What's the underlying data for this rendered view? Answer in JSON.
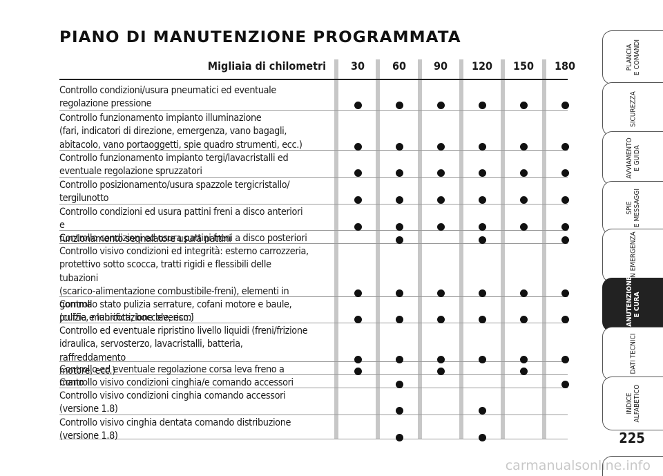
{
  "title": "PIANO DI MANUTENZIONE PROGRAMMATA",
  "table": {
    "header_label": "Migliaia di chilometri",
    "columns": [
      "30",
      "60",
      "90",
      "120",
      "150",
      "180"
    ],
    "rows": [
      {
        "text": "Controllo condizioni/usura pneumatici ed eventuale\nregolazione pressione",
        "marks": [
          1,
          1,
          1,
          1,
          1,
          1
        ]
      },
      {
        "text": "Controllo funzionamento impianto illuminazione\n(fari, indicatori di direzione, emergenza, vano bagagli,\nabitacolo, vano portaoggetti, spie quadro strumenti, ecc.)",
        "marks": [
          1,
          1,
          1,
          1,
          1,
          1
        ]
      },
      {
        "text": "Controllo funzionamento impianto tergi/lavacristalli ed\neventuale regolazione spruzzatori",
        "marks": [
          1,
          1,
          1,
          1,
          1,
          1
        ]
      },
      {
        "text": "Controllo posizionamento/usura spazzole tergicristallo/\ntergilunotto",
        "marks": [
          1,
          1,
          1,
          1,
          1,
          1
        ]
      },
      {
        "text": "Controllo condizioni ed usura pattini freni a disco anteriori e\nfunzionamento segnalatore usura pattini",
        "marks": [
          1,
          1,
          1,
          1,
          1,
          1
        ]
      },
      {
        "text": "Controllo condizioni ed usura pattini freni a disco posteriori",
        "marks": [
          0,
          1,
          0,
          1,
          0,
          1
        ]
      },
      {
        "text": "Controllo visivo condizioni ed integrità: esterno carrozzeria,\nprotettivo sotto scocca, tratti rigidi e flessibili delle tubazioni\n(scarico-alimentazione combustibile-freni), elementi in gomma\n(cuffie, manicotti, boccole, ecc.)",
        "marks": [
          1,
          1,
          1,
          1,
          1,
          1
        ]
      },
      {
        "text": "Controllo stato pulizia serrature, cofani motore e baule,\npulizia e lubrificazione leverismi",
        "marks": [
          1,
          1,
          1,
          1,
          1,
          1
        ]
      },
      {
        "text": "Controllo ed eventuale ripristino livello liquidi (freni/frizione\nidraulica, servosterzo, lavacristalli, batteria, raffreddamento\nmotore, ecc.)",
        "marks": [
          1,
          1,
          1,
          1,
          1,
          1
        ]
      },
      {
        "text": "Controllo ed eventuale regolazione corsa leva freno a mano",
        "marks": [
          1,
          0,
          1,
          0,
          1,
          0
        ]
      },
      {
        "text": "Controllo visivo condizioni cinghia/e comando accessori",
        "marks": [
          0,
          1,
          0,
          0,
          0,
          1
        ]
      },
      {
        "text": "Controllo visivo condizioni cinghia comando accessori\n(versione 1.8)",
        "marks": [
          0,
          1,
          0,
          1,
          0,
          0
        ]
      },
      {
        "text": "Controllo visivo cinghia dentata comando distribuzione\n(versione 1.8)",
        "marks": [
          0,
          1,
          0,
          1,
          0,
          0
        ]
      }
    ]
  },
  "side_tabs": [
    {
      "label": "PLANCIA\nE COMANDI",
      "active": false
    },
    {
      "label": "SICUREZZA",
      "active": false
    },
    {
      "label": "AVVIAMENTO\nE GUIDA",
      "active": false
    },
    {
      "label": "SPIE\nE MESSAGGI",
      "active": false
    },
    {
      "label": "IN EMERGENZA",
      "active": false
    },
    {
      "label": "MANUTENZIONE\nE CURA",
      "active": true
    },
    {
      "label": "DATI TECNICI",
      "active": false
    },
    {
      "label": "INDICE\nALFABETICO",
      "active": false
    }
  ],
  "page_number": "225",
  "watermark": "carmanualsonline.info",
  "colors": {
    "bar": "#c7c7c7",
    "active_tab": "#222222",
    "text": "#1a1a1a"
  }
}
